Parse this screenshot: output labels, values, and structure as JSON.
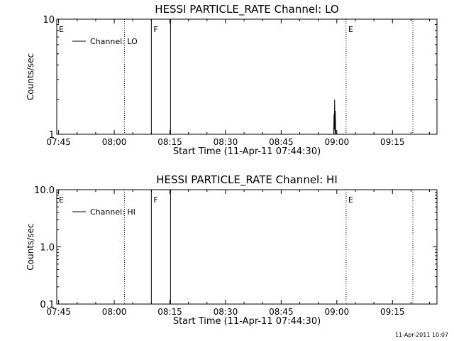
{
  "footer_timestamp": "11-Apr-2011 10:07",
  "chart_data": [
    {
      "type": "line",
      "title": "HESSI PARTICLE_RATE Channel: LO",
      "xlabel": "Start Time (11-Apr-11 07:44:30)",
      "ylabel": "Counts/sec",
      "yscale": "log",
      "xlim": [
        "07:44:30",
        "09:27:00"
      ],
      "ylim": [
        1,
        10
      ],
      "xticks": [
        "07:45",
        "08:00",
        "08:15",
        "08:30",
        "08:45",
        "09:00",
        "09:15"
      ],
      "yticks": [
        {
          "value": 1,
          "label": "1"
        },
        {
          "value": 10,
          "label": "10"
        }
      ],
      "legend": {
        "position": "top-left",
        "entries": [
          "Channel: LO"
        ]
      },
      "markers": [
        {
          "time": "07:44:30",
          "label": "E",
          "style": "none"
        },
        {
          "time": "08:02:45",
          "label": "",
          "style": "dotted"
        },
        {
          "time": "08:10:00",
          "label": "F",
          "style": "solid"
        },
        {
          "time": "08:15:10",
          "label": "",
          "style": "solid"
        },
        {
          "time": "09:02:30",
          "label": "E",
          "style": "dotted"
        },
        {
          "time": "09:20:30",
          "label": "",
          "style": "dotted"
        }
      ],
      "series": [
        {
          "x": [
            "08:59:00",
            "08:59:10",
            "08:59:15",
            "08:59:20",
            "08:59:25",
            "08:59:30",
            "08:59:35",
            "08:59:40",
            "08:59:50"
          ],
          "y": [
            1,
            1,
            1.5,
            1.1,
            2.0,
            1.0,
            1.6,
            1.1,
            1
          ]
        }
      ]
    },
    {
      "type": "line",
      "title": "HESSI PARTICLE_RATE Channel: HI",
      "xlabel": "Start Time (11-Apr-11 07:44:30)",
      "ylabel": "Counts/sec",
      "yscale": "log",
      "xlim": [
        "07:44:30",
        "09:27:00"
      ],
      "ylim": [
        0.1,
        10
      ],
      "xticks": [
        "07:45",
        "08:00",
        "08:15",
        "08:30",
        "08:45",
        "09:00",
        "09:15"
      ],
      "yticks": [
        {
          "value": 0.1,
          "label": "0.1"
        },
        {
          "value": 1,
          "label": "1.0"
        },
        {
          "value": 10,
          "label": "10.0"
        }
      ],
      "legend": {
        "position": "top-left",
        "entries": [
          "Channel: HI"
        ]
      },
      "markers": [
        {
          "time": "07:44:30",
          "label": "E",
          "style": "none"
        },
        {
          "time": "08:02:45",
          "label": "",
          "style": "dotted"
        },
        {
          "time": "08:10:00",
          "label": "F",
          "style": "solid"
        },
        {
          "time": "08:15:10",
          "label": "",
          "style": "solid"
        },
        {
          "time": "09:02:30",
          "label": "E",
          "style": "dotted"
        },
        {
          "time": "09:20:30",
          "label": "",
          "style": "dotted"
        }
      ],
      "series": []
    }
  ]
}
